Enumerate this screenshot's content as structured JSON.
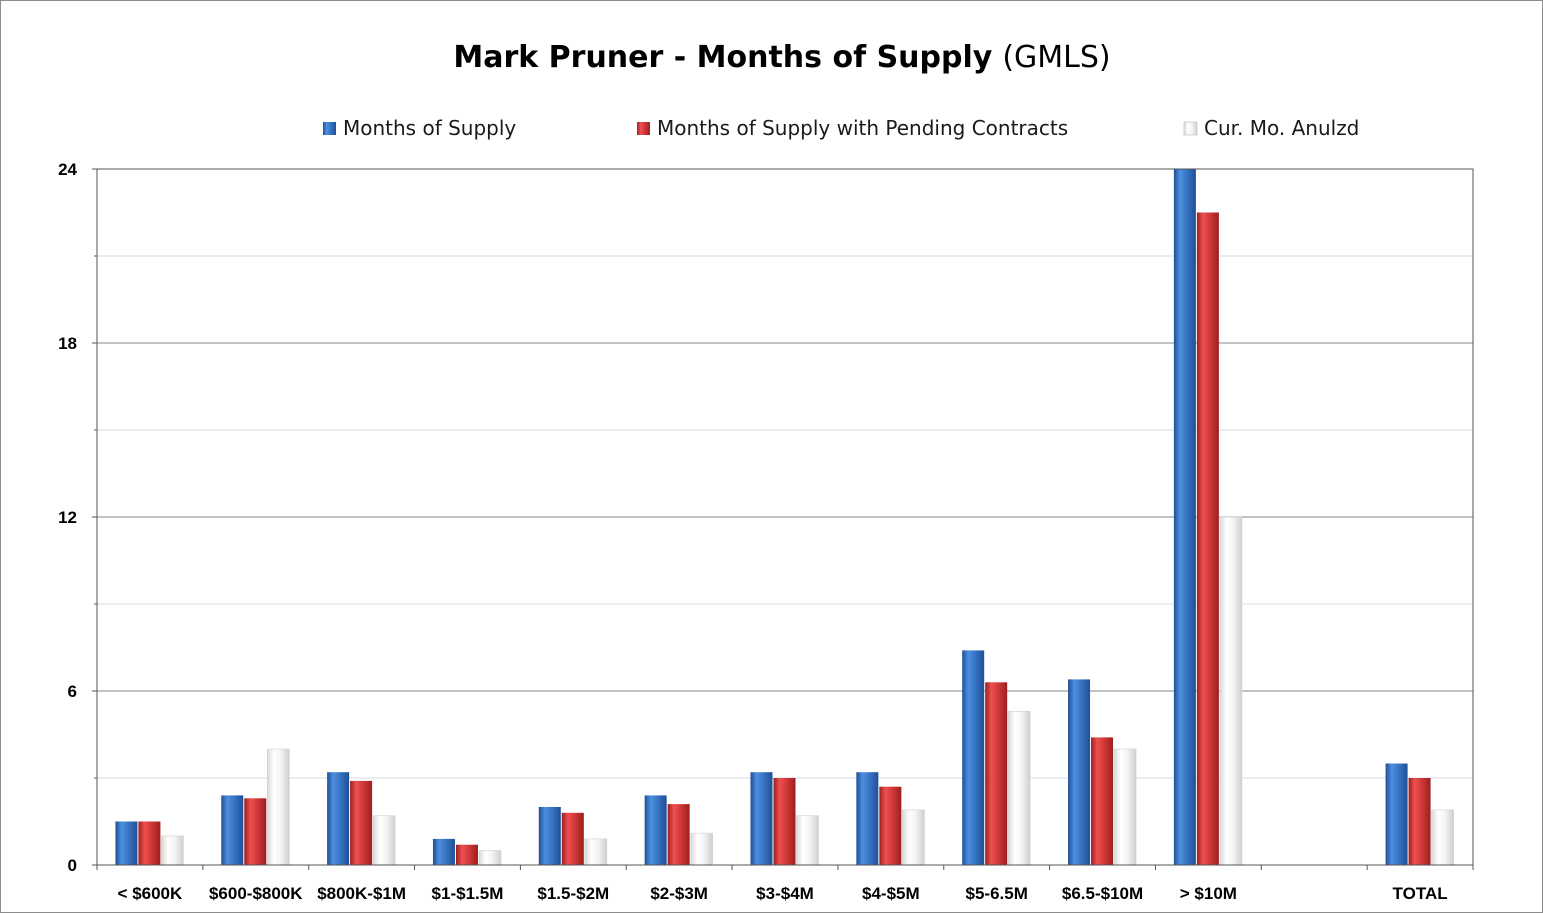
{
  "chart_data": {
    "type": "bar",
    "title_bold": "Mark Pruner - Months of Supply",
    "title_normal": "(GMLS)",
    "categories": [
      "< $600K",
      "$600-$800K",
      "$800K-$1M",
      "$1-$1.5M",
      "$1.5-$2M",
      "$2-$3M",
      "$3-$4M",
      "$4-$5M",
      "$5-6.5M",
      "$6.5-$10M",
      "> $10M",
      "",
      "TOTAL"
    ],
    "series": [
      {
        "name": "Months of Supply",
        "color": "#3a78c8",
        "values": [
          1.5,
          2.4,
          3.2,
          0.9,
          2.0,
          2.4,
          3.2,
          3.2,
          7.4,
          6.4,
          24.0,
          null,
          3.5
        ]
      },
      {
        "name": "Months of Supply with Pending Contracts",
        "color": "#d63b3b",
        "values": [
          1.5,
          2.3,
          2.9,
          0.7,
          1.8,
          2.1,
          3.0,
          2.7,
          6.3,
          4.4,
          22.5,
          null,
          3.0
        ]
      },
      {
        "name": "Cur. Mo. Anulzd",
        "color": "#eeeeee",
        "values": [
          1.0,
          4.0,
          1.7,
          0.5,
          0.9,
          1.1,
          1.7,
          1.9,
          5.3,
          4.0,
          12.0,
          null,
          1.9
        ]
      }
    ],
    "ylim": [
      0,
      24
    ],
    "yticks": [
      "0",
      "6",
      "12",
      "18",
      "24"
    ],
    "legend_position": "top",
    "grid": true,
    "xlabel": "",
    "ylabel": ""
  }
}
